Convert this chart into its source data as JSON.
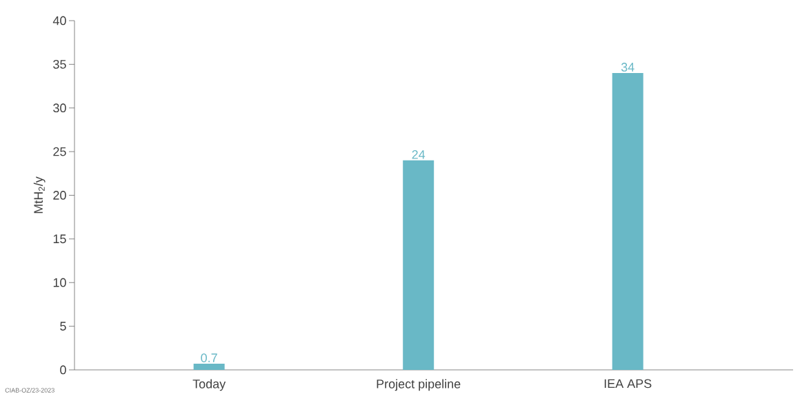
{
  "chart_data": {
    "type": "bar",
    "ylabel": "MtH$_{2}$/y",
    "categories": [
      "Today",
      "Project pipeline",
      "IEA APS"
    ],
    "values": [
      0.7,
      24,
      34
    ],
    "color": "#69b8c6",
    "ylim": [
      0,
      40
    ],
    "yticks": [
      0,
      5,
      10,
      15,
      20,
      25,
      30,
      35,
      40
    ],
    "data_labels": true,
    "annotations": [
      "CIAB-OZ/23-2023"
    ]
  }
}
